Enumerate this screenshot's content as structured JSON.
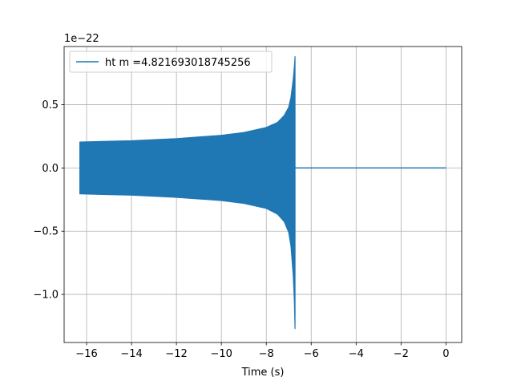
{
  "chart_data": {
    "type": "line",
    "xlabel": "Time (s)",
    "ylabel": "",
    "offset_text": "1e−22",
    "xlim": [
      -17,
      0.7
    ],
    "ylim": [
      -1.38,
      0.96
    ],
    "xticks": [
      -16,
      -14,
      -12,
      -10,
      -8,
      -6,
      -4,
      -2,
      0
    ],
    "xtick_labels": [
      "−16",
      "−14",
      "−12",
      "−10",
      "−8",
      "−6",
      "−4",
      "−2",
      "0"
    ],
    "yticks": [
      -1.0,
      -0.5,
      0.0,
      0.5
    ],
    "ytick_labels": [
      "−1.0",
      "−0.5",
      "0.0",
      "0.5"
    ],
    "grid": true,
    "legend_position": "upper-left",
    "series": [
      {
        "name": "ht m =4.821693018745256",
        "color": "#1f77b4",
        "segment_start": -16.3,
        "merger_time": -6.72,
        "segment_end": 0.0,
        "envelope": {
          "t": [
            -16.3,
            -14,
            -12,
            -10,
            -9,
            -8,
            -7.5,
            -7.2,
            -7.0,
            -6.9,
            -6.8,
            -6.75,
            -6.72
          ],
          "upper": [
            0.205,
            0.215,
            0.232,
            0.258,
            0.28,
            0.32,
            0.36,
            0.415,
            0.48,
            0.56,
            0.7,
            0.8,
            0.88
          ],
          "lower": [
            -0.205,
            -0.215,
            -0.232,
            -0.258,
            -0.28,
            -0.32,
            -0.365,
            -0.425,
            -0.51,
            -0.62,
            -0.85,
            -1.05,
            -1.27
          ]
        },
        "post_merger_value": 0.0
      }
    ]
  }
}
